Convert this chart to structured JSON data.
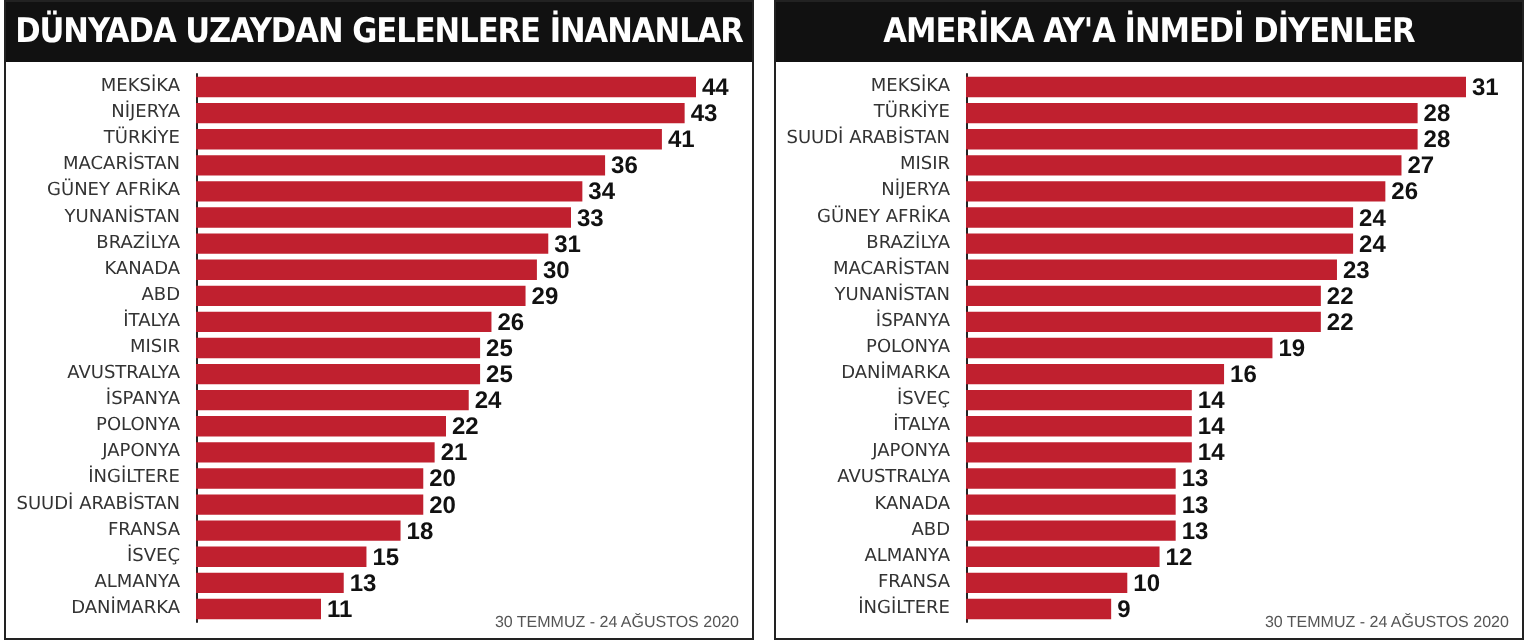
{
  "chart_data": [
    {
      "type": "bar",
      "orientation": "horizontal",
      "title": "DÜNYADA UZAYDAN GELENLERE İNANANLAR",
      "categories": [
        "MEKSİKA",
        "NİJERYA",
        "TÜRKİYE",
        "MACARİSTAN",
        "GÜNEY AFRİKA",
        "YUNANİSTAN",
        "BRAZİLYA",
        "KANADA",
        "ABD",
        "İTALYA",
        "MISIR",
        "AVUSTRALYA",
        "İSPANYA",
        "POLONYA",
        "JAPONYA",
        "İNGİLTERE",
        "SUUDİ ARABİSTAN",
        "FRANSA",
        "İSVEÇ",
        "ALMANYA",
        "DANİMARKA"
      ],
      "values": [
        44,
        43,
        41,
        36,
        34,
        33,
        31,
        30,
        29,
        26,
        25,
        25,
        24,
        22,
        21,
        20,
        20,
        18,
        15,
        13,
        11
      ],
      "color": "#c0202f",
      "data_labels": true,
      "annotations": [
        "30 TEMMUZ - 24 AĞUSTOS 2020"
      ]
    },
    {
      "type": "bar",
      "orientation": "horizontal",
      "title": "AMERİKA AY'A İNMEDİ DİYENLER",
      "categories": [
        "MEKSİKA",
        "TÜRKİYE",
        "SUUDİ ARABİSTAN",
        "MISIR",
        "NİJERYA",
        "GÜNEY AFRİKA",
        "BRAZİLYA",
        "MACARİSTAN",
        "YUNANİSTAN",
        "İSPANYA",
        "POLONYA",
        "DANİMARKA",
        "İSVEÇ",
        "İTALYA",
        "JAPONYA",
        "AVUSTRALYA",
        "KANADA",
        "ABD",
        "ALMANYA",
        "FRANSA",
        "İNGİLTERE"
      ],
      "values": [
        31,
        28,
        28,
        27,
        26,
        24,
        24,
        23,
        22,
        22,
        19,
        16,
        14,
        14,
        14,
        13,
        13,
        13,
        12,
        10,
        9
      ],
      "color": "#c0202f",
      "data_labels": true,
      "annotations": [
        "30 TEMMUZ - 24 AĞUSTOS 2020"
      ]
    }
  ]
}
